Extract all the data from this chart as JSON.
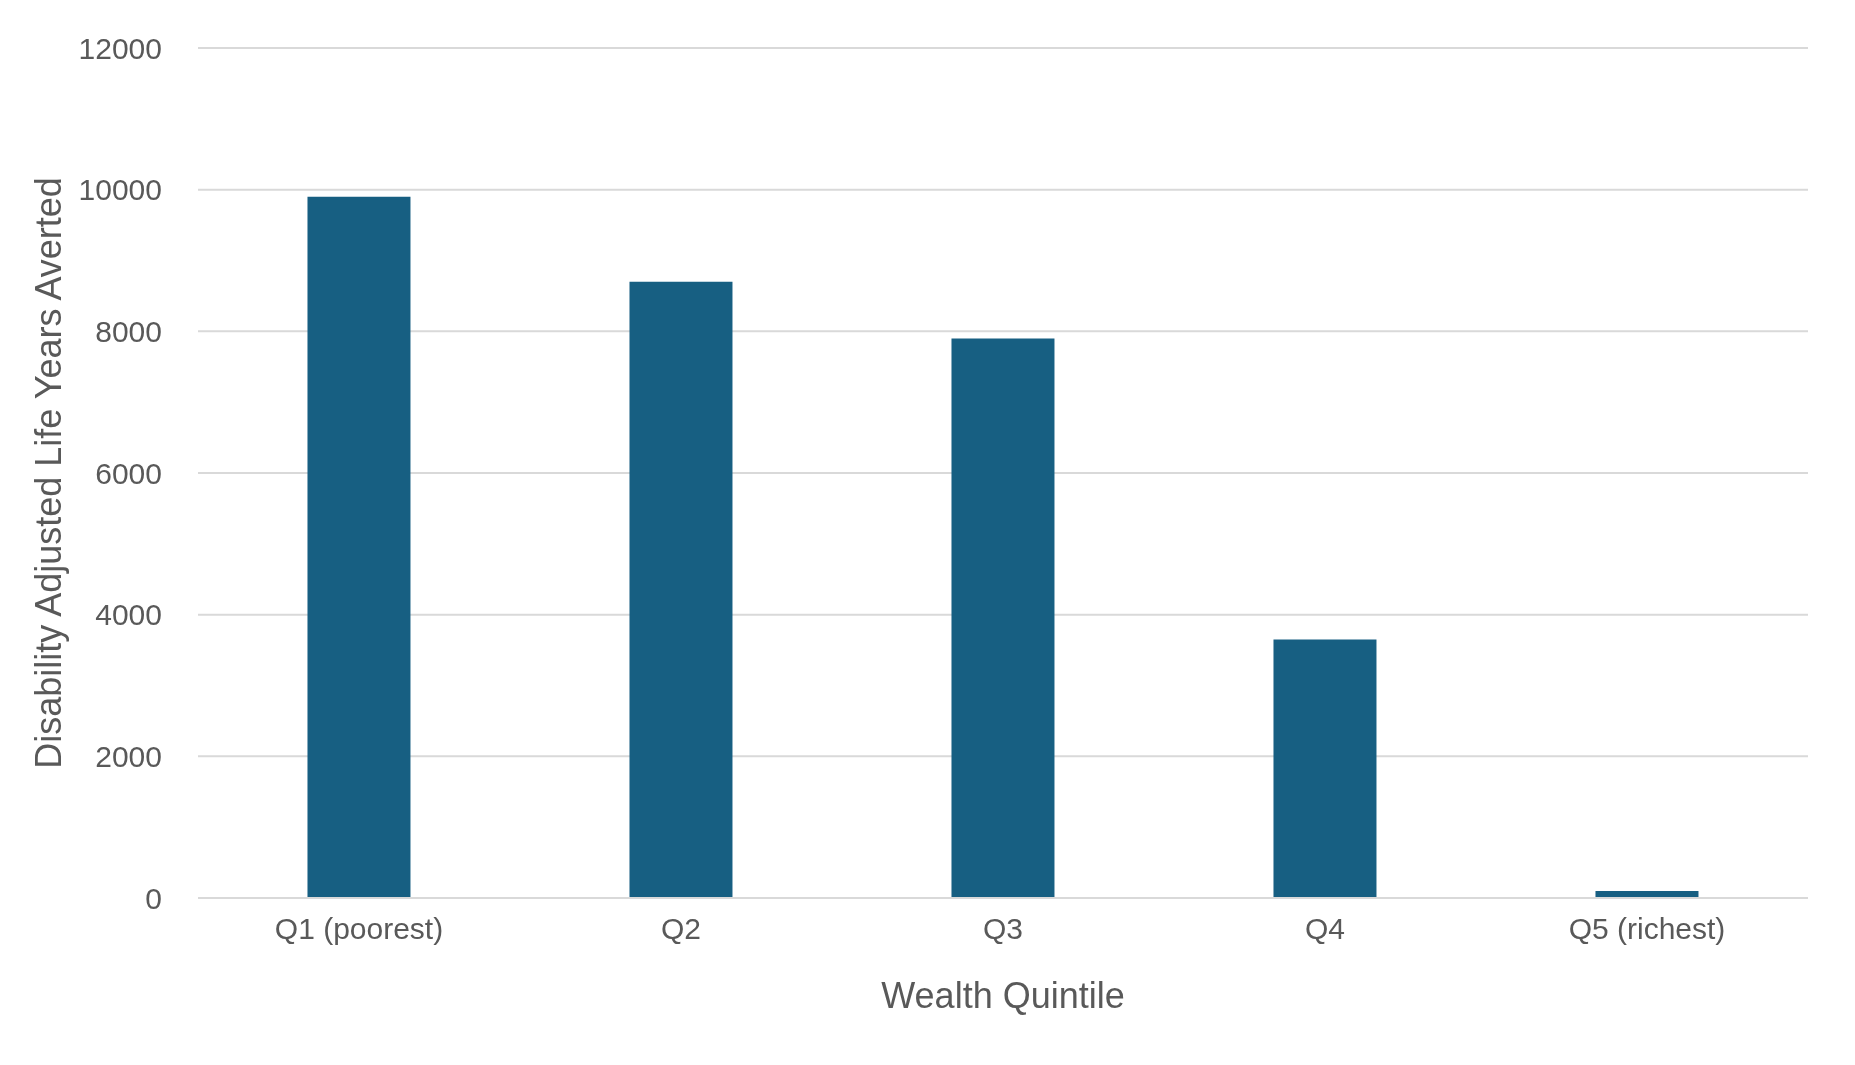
{
  "chart_data": {
    "type": "bar",
    "xlabel": "Wealth Quintile",
    "ylabel": "Disability Adjusted Life Years Averted",
    "categories": [
      "Q1 (poorest)",
      "Q2",
      "Q3",
      "Q4",
      "Q5 (richest)"
    ],
    "values": [
      9900,
      8700,
      7900,
      3650,
      100
    ],
    "color": "#175f82",
    "ylim": [
      0,
      12000
    ],
    "yticks": [
      0,
      2000,
      4000,
      6000,
      8000,
      10000,
      12000
    ],
    "grid": "y",
    "legend": false
  }
}
